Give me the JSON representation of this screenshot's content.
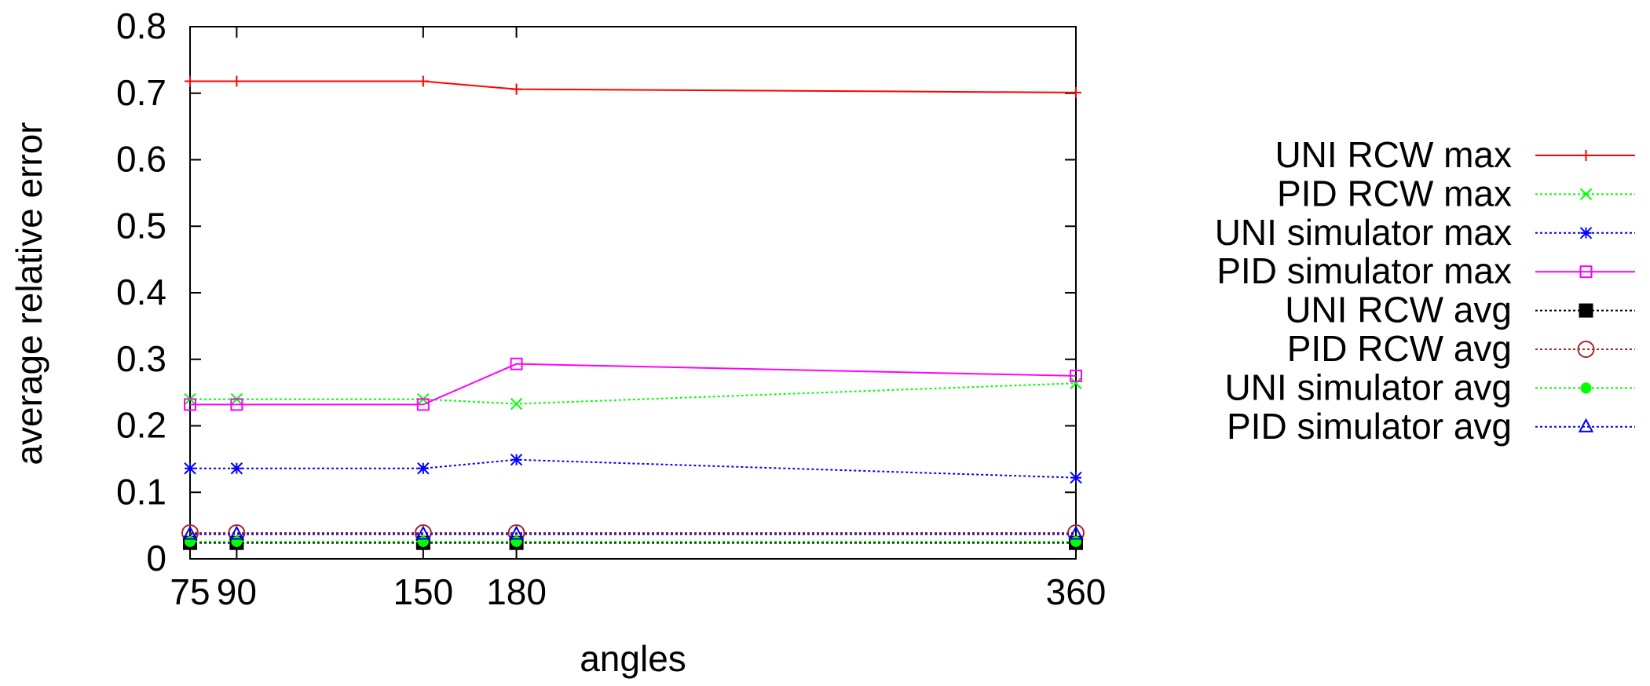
{
  "chart_data": {
    "type": "line",
    "title": "",
    "xlabel": "angles",
    "ylabel": "average relative error",
    "x": [
      75,
      90,
      150,
      180,
      360
    ],
    "xlim": [
      75,
      360
    ],
    "ylim": [
      0,
      0.8
    ],
    "xticks": [
      "75",
      "90",
      "150",
      "180",
      "360"
    ],
    "yticks": [
      "0",
      "0.1",
      "0.2",
      "0.3",
      "0.4",
      "0.5",
      "0.6",
      "0.7",
      "0.8"
    ],
    "grid": false,
    "legend_position": "right",
    "series": [
      {
        "name": "UNI RCW max",
        "values": [
          0.718,
          0.718,
          0.718,
          0.706,
          0.701
        ],
        "color": "#ff0000",
        "marker": "plus",
        "dash": "solid"
      },
      {
        "name": "PID RCW max",
        "values": [
          0.24,
          0.24,
          0.24,
          0.233,
          0.264
        ],
        "color": "#00ff00",
        "marker": "cross",
        "dash": "dotted"
      },
      {
        "name": "UNI simulator max",
        "values": [
          0.136,
          0.136,
          0.136,
          0.149,
          0.122
        ],
        "color": "#0000ff",
        "marker": "star",
        "dash": "dotted"
      },
      {
        "name": "PID simulator max",
        "values": [
          0.232,
          0.232,
          0.232,
          0.293,
          0.275
        ],
        "color": "#ff00ff",
        "marker": "square-open",
        "dash": "solid"
      },
      {
        "name": "UNI RCW avg",
        "values": [
          0.024,
          0.024,
          0.024,
          0.024,
          0.024
        ],
        "color": "#000000",
        "marker": "square-filled",
        "dash": "dotted"
      },
      {
        "name": "PID RCW avg",
        "values": [
          0.039,
          0.039,
          0.039,
          0.039,
          0.039
        ],
        "color": "#a52a2a",
        "marker": "circle-open",
        "dash": "dotted"
      },
      {
        "name": "UNI simulator avg",
        "values": [
          0.026,
          0.026,
          0.026,
          0.026,
          0.026
        ],
        "color": "#00ff00",
        "marker": "circle-filled",
        "dash": "dotted"
      },
      {
        "name": "PID simulator avg",
        "values": [
          0.037,
          0.037,
          0.037,
          0.037,
          0.037
        ],
        "color": "#0000ff",
        "marker": "triangle-open",
        "dash": "dotted"
      }
    ]
  }
}
